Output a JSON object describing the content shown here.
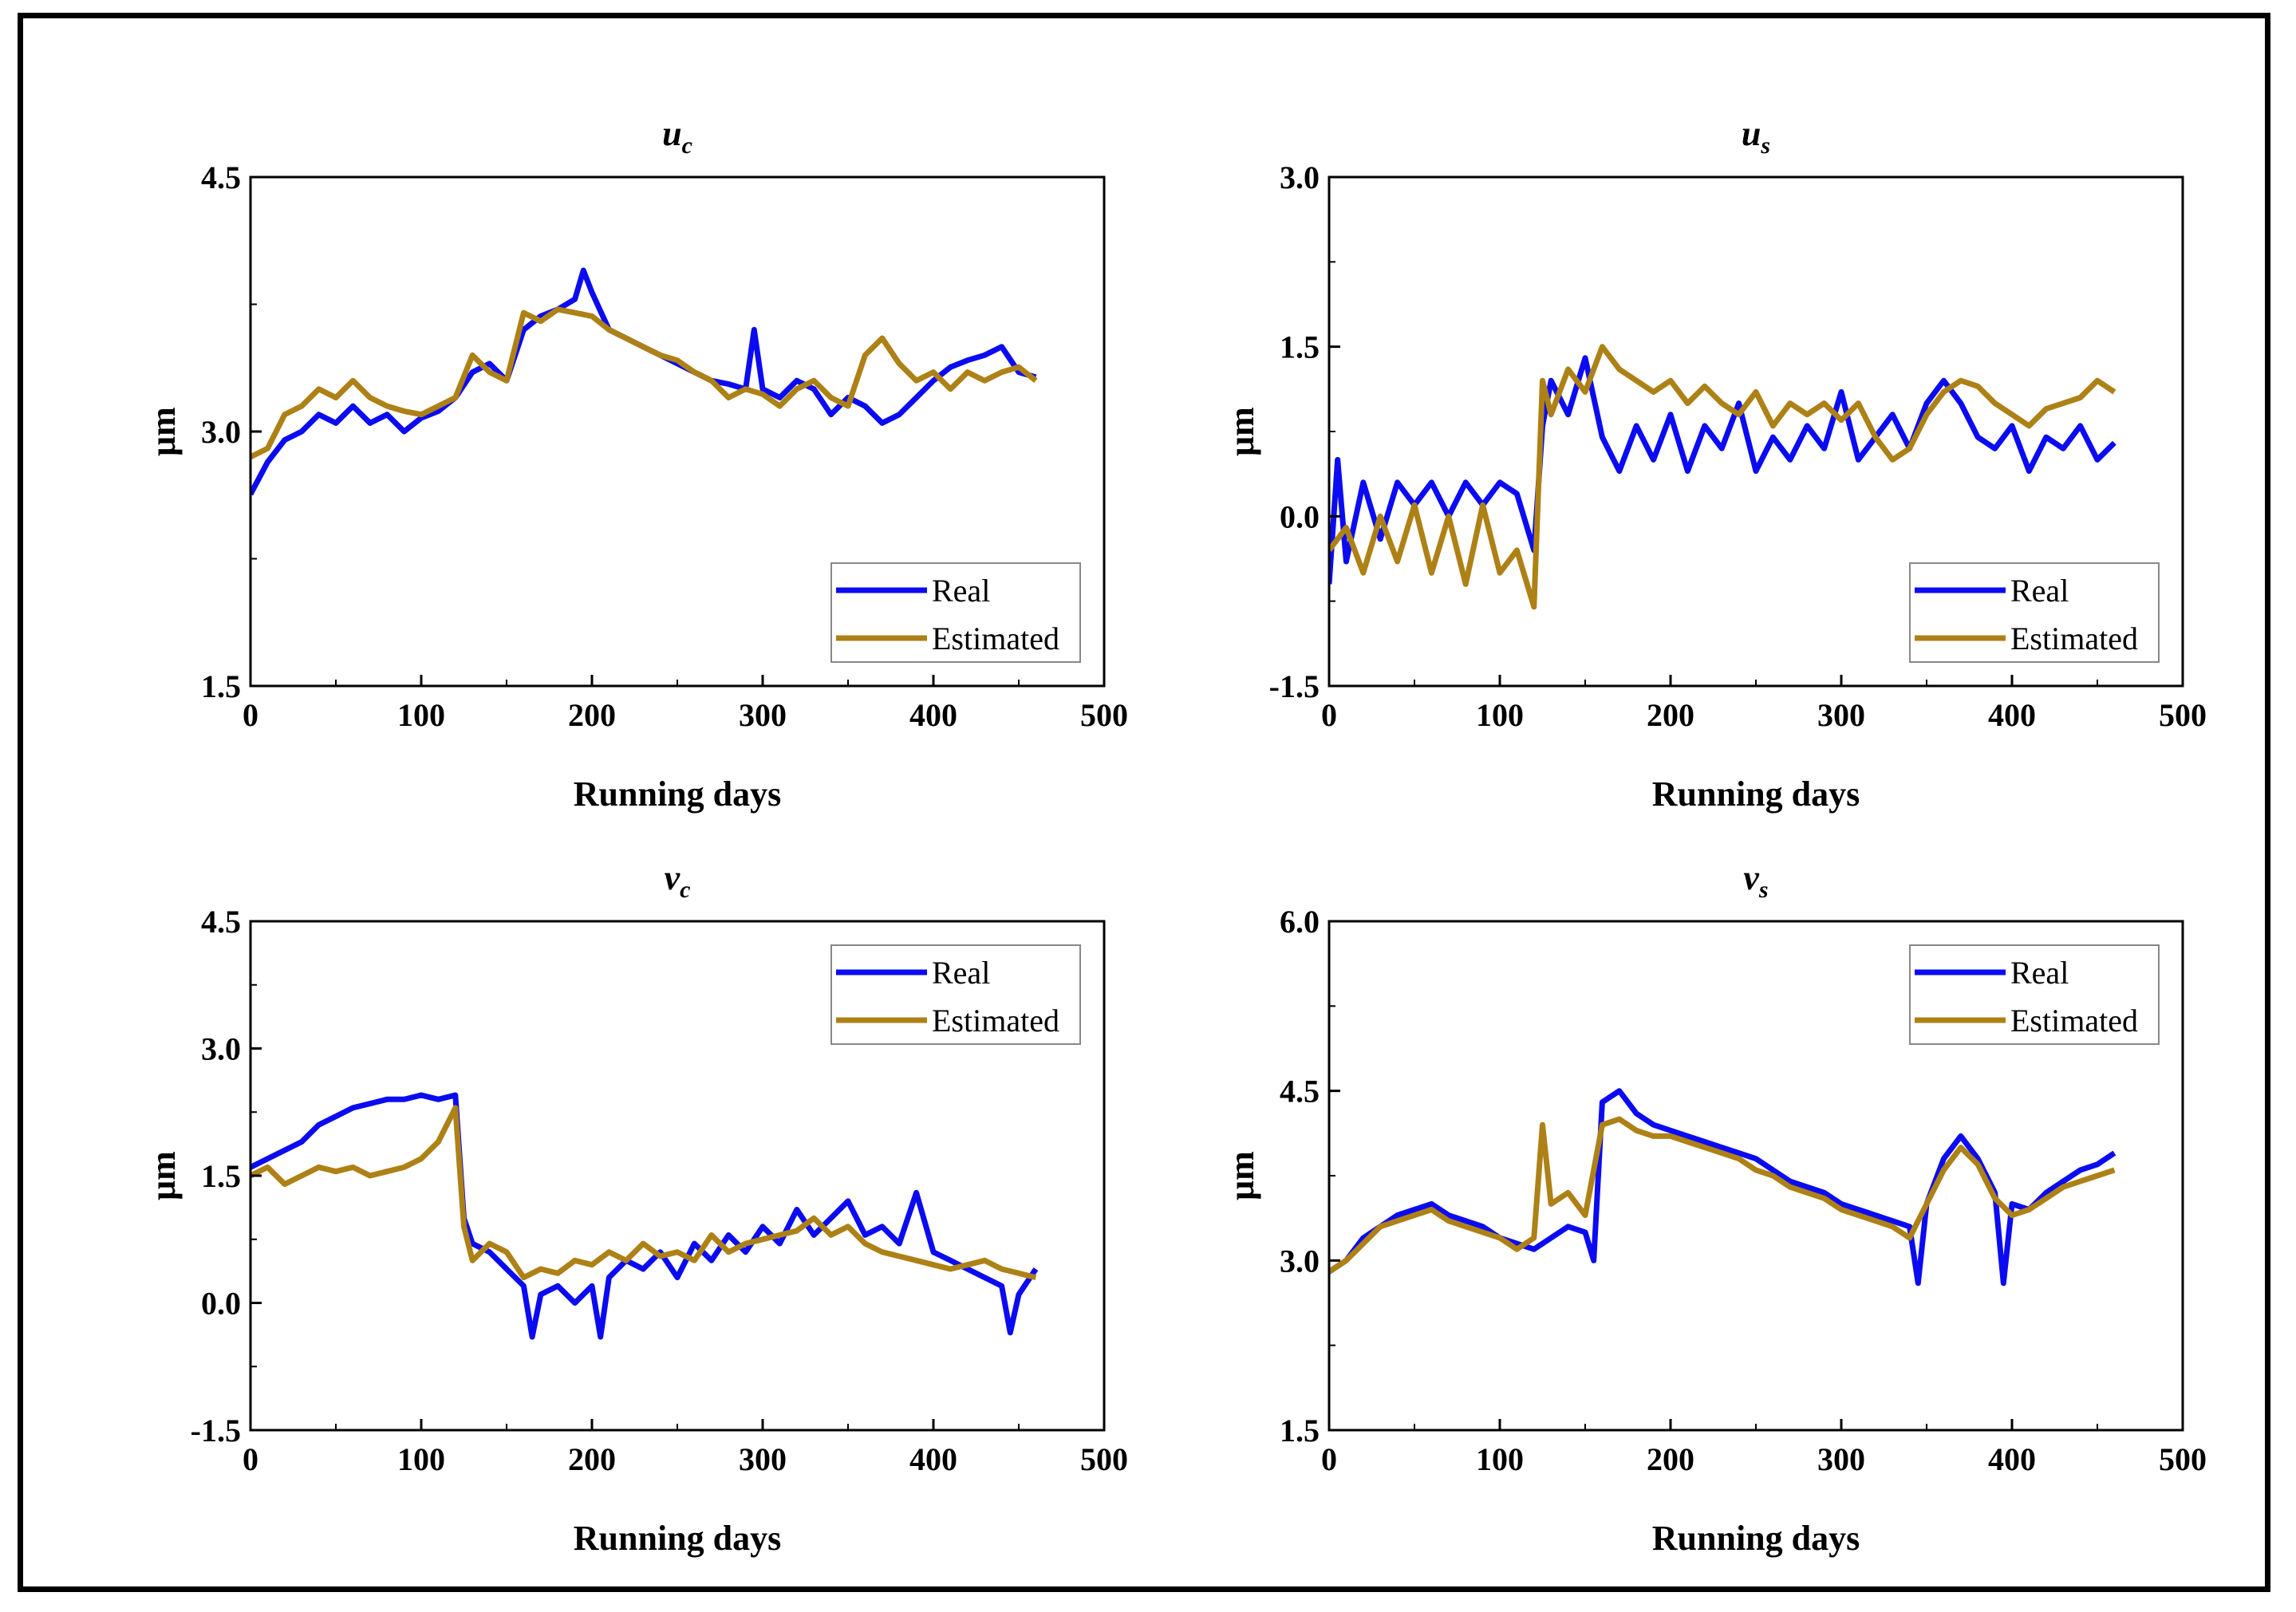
{
  "figure": {
    "frame_color": "#000000",
    "colors": {
      "real": "#0b0bf2",
      "estimated": "#ad8116"
    }
  },
  "chart_data": [
    {
      "type": "line",
      "title": "u",
      "title_sub": "c",
      "xlabel": "Running days",
      "ylabel": "μm",
      "xlim": [
        0,
        500
      ],
      "ylim": [
        1.5,
        4.5
      ],
      "xticks": [
        "0",
        "100",
        "200",
        "300",
        "400",
        "500"
      ],
      "yticks": [
        "1.5",
        "3.0",
        "4.5"
      ],
      "legend": {
        "placement": "bottom-right",
        "entries": [
          "Real",
          "Estimated"
        ]
      },
      "series": [
        {
          "name": "Real",
          "color": "#0b0bf2",
          "x": [
            0,
            10,
            20,
            30,
            40,
            50,
            60,
            70,
            80,
            90,
            100,
            110,
            120,
            130,
            140,
            150,
            160,
            170,
            180,
            190,
            195,
            200,
            210,
            220,
            230,
            240,
            250,
            260,
            270,
            280,
            290,
            295,
            300,
            310,
            320,
            330,
            340,
            350,
            360,
            370,
            380,
            390,
            400,
            410,
            420,
            430,
            440,
            450,
            460
          ],
          "values": [
            2.63,
            2.82,
            2.95,
            3.0,
            3.1,
            3.05,
            3.15,
            3.05,
            3.1,
            3.0,
            3.08,
            3.12,
            3.2,
            3.35,
            3.4,
            3.3,
            3.6,
            3.68,
            3.72,
            3.78,
            3.95,
            3.82,
            3.6,
            3.55,
            3.5,
            3.45,
            3.4,
            3.35,
            3.3,
            3.28,
            3.25,
            3.6,
            3.25,
            3.2,
            3.3,
            3.25,
            3.1,
            3.2,
            3.15,
            3.05,
            3.1,
            3.2,
            3.3,
            3.38,
            3.42,
            3.45,
            3.5,
            3.35,
            3.32
          ]
        },
        {
          "name": "Estimated",
          "color": "#ad8116",
          "x": [
            0,
            10,
            20,
            30,
            40,
            50,
            60,
            70,
            80,
            90,
            100,
            110,
            120,
            130,
            140,
            150,
            160,
            170,
            180,
            190,
            200,
            210,
            220,
            230,
            240,
            250,
            260,
            270,
            280,
            290,
            300,
            310,
            320,
            330,
            340,
            350,
            360,
            370,
            380,
            390,
            400,
            410,
            420,
            430,
            440,
            450,
            460
          ],
          "values": [
            2.85,
            2.9,
            3.1,
            3.15,
            3.25,
            3.2,
            3.3,
            3.2,
            3.15,
            3.12,
            3.1,
            3.15,
            3.2,
            3.45,
            3.35,
            3.3,
            3.7,
            3.65,
            3.72,
            3.7,
            3.68,
            3.6,
            3.55,
            3.5,
            3.45,
            3.42,
            3.35,
            3.3,
            3.2,
            3.25,
            3.22,
            3.15,
            3.25,
            3.3,
            3.2,
            3.15,
            3.45,
            3.55,
            3.4,
            3.3,
            3.35,
            3.25,
            3.35,
            3.3,
            3.35,
            3.38,
            3.3
          ]
        }
      ]
    },
    {
      "type": "line",
      "title": "u",
      "title_sub": "s",
      "xlabel": "Running days",
      "ylabel": "μm",
      "xlim": [
        0,
        500
      ],
      "ylim": [
        -1.5,
        3.0
      ],
      "xticks": [
        "0",
        "100",
        "200",
        "300",
        "400",
        "500"
      ],
      "yticks": [
        "-1.5",
        "0.0",
        "1.5",
        "3.0"
      ],
      "legend": {
        "placement": "bottom-right",
        "entries": [
          "Real",
          "Estimated"
        ]
      },
      "series": [
        {
          "name": "Real",
          "color": "#0b0bf2",
          "x": [
            0,
            5,
            10,
            20,
            30,
            40,
            50,
            60,
            70,
            80,
            90,
            100,
            110,
            120,
            125,
            130,
            140,
            150,
            160,
            170,
            180,
            190,
            200,
            210,
            220,
            230,
            240,
            250,
            260,
            270,
            280,
            290,
            300,
            310,
            320,
            330,
            340,
            350,
            360,
            370,
            380,
            390,
            400,
            410,
            420,
            430,
            440,
            450,
            460
          ],
          "values": [
            -0.6,
            0.5,
            -0.4,
            0.3,
            -0.2,
            0.3,
            0.1,
            0.3,
            0.0,
            0.3,
            0.1,
            0.3,
            0.2,
            -0.3,
            0.8,
            1.2,
            0.9,
            1.4,
            0.7,
            0.4,
            0.8,
            0.5,
            0.9,
            0.4,
            0.8,
            0.6,
            1.0,
            0.4,
            0.7,
            0.5,
            0.8,
            0.6,
            1.1,
            0.5,
            0.7,
            0.9,
            0.6,
            1.0,
            1.2,
            1.0,
            0.7,
            0.6,
            0.8,
            0.4,
            0.7,
            0.6,
            0.8,
            0.5,
            0.65
          ]
        },
        {
          "name": "Estimated",
          "color": "#ad8116",
          "x": [
            0,
            10,
            20,
            30,
            40,
            50,
            60,
            70,
            80,
            90,
            100,
            110,
            120,
            125,
            130,
            140,
            150,
            160,
            170,
            180,
            190,
            200,
            210,
            220,
            230,
            240,
            250,
            260,
            270,
            280,
            290,
            300,
            310,
            320,
            330,
            340,
            350,
            360,
            370,
            380,
            390,
            400,
            410,
            420,
            430,
            440,
            450,
            460
          ],
          "values": [
            -0.3,
            -0.1,
            -0.5,
            0.0,
            -0.4,
            0.1,
            -0.5,
            0.0,
            -0.6,
            0.1,
            -0.5,
            -0.3,
            -0.8,
            1.2,
            0.9,
            1.3,
            1.1,
            1.5,
            1.3,
            1.2,
            1.1,
            1.2,
            1.0,
            1.15,
            1.0,
            0.9,
            1.1,
            0.8,
            1.0,
            0.9,
            1.0,
            0.85,
            1.0,
            0.7,
            0.5,
            0.6,
            0.9,
            1.1,
            1.2,
            1.15,
            1.0,
            0.9,
            0.8,
            0.95,
            1.0,
            1.05,
            1.2,
            1.1
          ]
        }
      ]
    },
    {
      "type": "line",
      "title": "v",
      "title_sub": "c",
      "xlabel": "Running days",
      "ylabel": "μm",
      "xlim": [
        0,
        500
      ],
      "ylim": [
        -1.5,
        4.5
      ],
      "xticks": [
        "0",
        "100",
        "200",
        "300",
        "400",
        "500"
      ],
      "yticks": [
        "-1.5",
        "0.0",
        "1.5",
        "3.0",
        "4.5"
      ],
      "legend": {
        "placement": "top-right",
        "entries": [
          "Real",
          "Estimated"
        ]
      },
      "series": [
        {
          "name": "Real",
          "color": "#0b0bf2",
          "x": [
            0,
            10,
            20,
            30,
            40,
            50,
            60,
            70,
            80,
            90,
            100,
            110,
            120,
            125,
            130,
            140,
            150,
            160,
            165,
            170,
            180,
            190,
            200,
            205,
            210,
            220,
            230,
            240,
            250,
            260,
            270,
            280,
            290,
            300,
            310,
            320,
            330,
            340,
            350,
            360,
            370,
            380,
            390,
            400,
            410,
            420,
            430,
            440,
            445,
            450,
            460
          ],
          "values": [
            1.6,
            1.7,
            1.8,
            1.9,
            2.1,
            2.2,
            2.3,
            2.35,
            2.4,
            2.4,
            2.45,
            2.4,
            2.45,
            1.0,
            0.7,
            0.6,
            0.4,
            0.2,
            -0.4,
            0.1,
            0.2,
            0.0,
            0.2,
            -0.4,
            0.3,
            0.5,
            0.4,
            0.6,
            0.3,
            0.7,
            0.5,
            0.8,
            0.6,
            0.9,
            0.7,
            1.1,
            0.8,
            1.0,
            1.2,
            0.8,
            0.9,
            0.7,
            1.3,
            0.6,
            0.5,
            0.4,
            0.3,
            0.2,
            -0.35,
            0.1,
            0.4
          ]
        },
        {
          "name": "Estimated",
          "color": "#ad8116",
          "x": [
            0,
            10,
            20,
            30,
            40,
            50,
            60,
            70,
            80,
            90,
            100,
            110,
            120,
            125,
            130,
            140,
            150,
            160,
            170,
            180,
            190,
            200,
            210,
            220,
            230,
            240,
            250,
            260,
            270,
            280,
            290,
            300,
            310,
            320,
            330,
            340,
            350,
            360,
            370,
            380,
            390,
            400,
            410,
            420,
            430,
            440,
            450,
            460
          ],
          "values": [
            1.5,
            1.6,
            1.4,
            1.5,
            1.6,
            1.55,
            1.6,
            1.5,
            1.55,
            1.6,
            1.7,
            1.9,
            2.3,
            0.9,
            0.5,
            0.7,
            0.6,
            0.3,
            0.4,
            0.35,
            0.5,
            0.45,
            0.6,
            0.5,
            0.7,
            0.55,
            0.6,
            0.5,
            0.8,
            0.6,
            0.7,
            0.75,
            0.8,
            0.85,
            1.0,
            0.8,
            0.9,
            0.7,
            0.6,
            0.55,
            0.5,
            0.45,
            0.4,
            0.45,
            0.5,
            0.4,
            0.35,
            0.3
          ]
        }
      ]
    },
    {
      "type": "line",
      "title": "v",
      "title_sub": "s",
      "xlabel": "Running days",
      "ylabel": "μm",
      "xlim": [
        0,
        500
      ],
      "ylim": [
        1.5,
        6.0
      ],
      "xticks": [
        "0",
        "100",
        "200",
        "300",
        "400",
        "500"
      ],
      "yticks": [
        "1.5",
        "3.0",
        "4.5",
        "6.0"
      ],
      "legend": {
        "placement": "top-right",
        "entries": [
          "Real",
          "Estimated"
        ]
      },
      "series": [
        {
          "name": "Real",
          "color": "#0b0bf2",
          "x": [
            0,
            10,
            20,
            30,
            40,
            50,
            60,
            70,
            80,
            90,
            100,
            110,
            120,
            130,
            140,
            150,
            155,
            160,
            170,
            180,
            190,
            200,
            210,
            220,
            230,
            240,
            250,
            260,
            270,
            280,
            290,
            300,
            310,
            320,
            330,
            340,
            345,
            350,
            360,
            370,
            380,
            390,
            395,
            400,
            410,
            420,
            430,
            440,
            450,
            460
          ],
          "values": [
            2.9,
            3.0,
            3.2,
            3.3,
            3.4,
            3.45,
            3.5,
            3.4,
            3.35,
            3.3,
            3.2,
            3.15,
            3.1,
            3.2,
            3.3,
            3.25,
            3.0,
            4.4,
            4.5,
            4.3,
            4.2,
            4.15,
            4.1,
            4.05,
            4.0,
            3.95,
            3.9,
            3.8,
            3.7,
            3.65,
            3.6,
            3.5,
            3.45,
            3.4,
            3.35,
            3.3,
            2.8,
            3.5,
            3.9,
            4.1,
            3.9,
            3.6,
            2.8,
            3.5,
            3.45,
            3.6,
            3.7,
            3.8,
            3.85,
            3.95
          ]
        },
        {
          "name": "Estimated",
          "color": "#ad8116",
          "x": [
            0,
            10,
            20,
            30,
            40,
            50,
            60,
            70,
            80,
            90,
            100,
            110,
            120,
            125,
            130,
            140,
            150,
            160,
            170,
            180,
            190,
            200,
            210,
            220,
            230,
            240,
            250,
            260,
            270,
            280,
            290,
            300,
            310,
            320,
            330,
            340,
            350,
            360,
            370,
            380,
            390,
            400,
            410,
            420,
            430,
            440,
            450,
            460
          ],
          "values": [
            2.9,
            3.0,
            3.15,
            3.3,
            3.35,
            3.4,
            3.45,
            3.35,
            3.3,
            3.25,
            3.2,
            3.1,
            3.2,
            4.2,
            3.5,
            3.6,
            3.4,
            4.2,
            4.25,
            4.15,
            4.1,
            4.1,
            4.05,
            4.0,
            3.95,
            3.9,
            3.8,
            3.75,
            3.65,
            3.6,
            3.55,
            3.45,
            3.4,
            3.35,
            3.3,
            3.2,
            3.5,
            3.8,
            4.0,
            3.85,
            3.55,
            3.4,
            3.45,
            3.55,
            3.65,
            3.7,
            3.75,
            3.8
          ]
        }
      ]
    }
  ]
}
